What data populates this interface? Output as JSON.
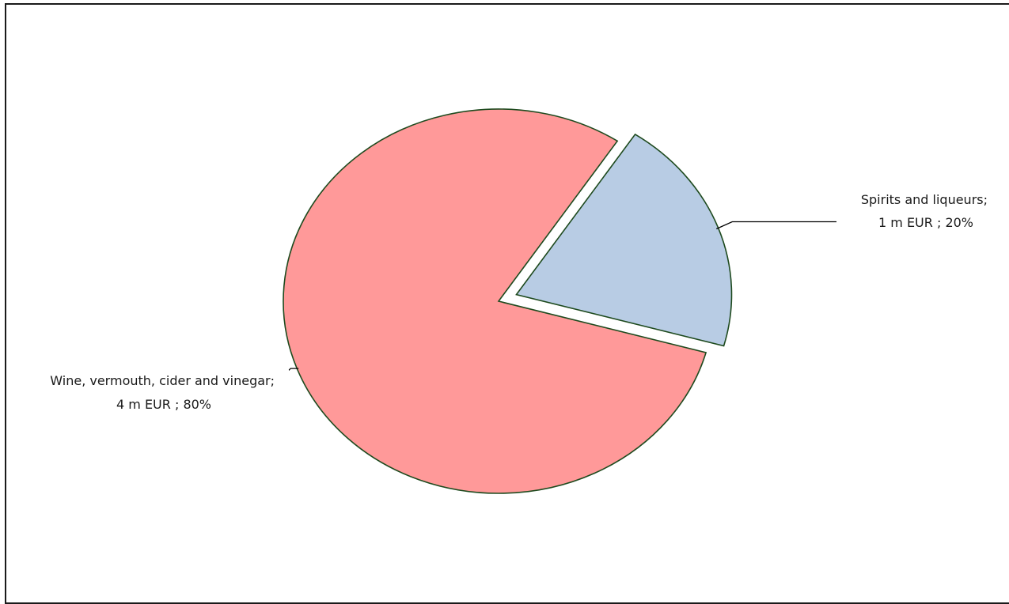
{
  "chart_data": {
    "type": "pie",
    "title": "",
    "series": [
      {
        "values": [
          {
            "label": "Spirits and liqueurs",
            "value": 1,
            "unit": "m EUR",
            "percent": 20,
            "color": "#b8cce4",
            "exploded": true,
            "label_line1": "Spirits and liqueurs;",
            "label_line2": "1 m EUR ; 20%"
          },
          {
            "label": "Wine, vermouth, cider and vinegar",
            "value": 4,
            "unit": "m EUR",
            "percent": 80,
            "color": "#ff9999",
            "exploded": false,
            "label_line1": "Wine, vermouth, cider and vinegar;",
            "label_line2": "4 m EUR ; 80%"
          }
        ]
      }
    ],
    "slice_outline_color": "#1e4a1e",
    "legend": "none"
  }
}
